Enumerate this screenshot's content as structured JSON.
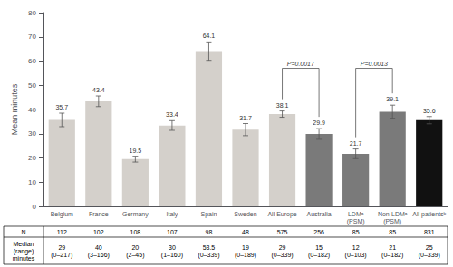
{
  "chart_data": {
    "type": "bar",
    "categories": [
      "Belgium",
      "France",
      "Germany",
      "Italy",
      "Spain",
      "Sweden",
      "All Europe",
      "Australia",
      "LDMᵃ\n(PSM)",
      "Non-LDMᵃ\n(PSM)",
      "All patientsᵇ"
    ],
    "values": [
      35.7,
      43.4,
      19.5,
      33.4,
      64.1,
      31.7,
      38.1,
      29.9,
      21.7,
      39.1,
      35.6
    ],
    "errors": [
      2.8,
      2.2,
      1.2,
      2.0,
      3.8,
      2.5,
      1.3,
      2.2,
      2.0,
      2.7,
      1.5
    ],
    "colors": [
      "#d4d0cb",
      "#d4d0cb",
      "#d4d0cb",
      "#d4d0cb",
      "#d4d0cb",
      "#d4d0cb",
      "#d4d0cb",
      "#7a7a7a",
      "#7a7a7a",
      "#7a7a7a",
      "#111111"
    ],
    "ylabel": "Mean minutes",
    "ylim": [
      0,
      80
    ],
    "yticks": [
      0,
      10,
      20,
      30,
      40,
      50,
      60,
      70,
      80
    ],
    "grid": false,
    "data_labels": true,
    "annotations": [
      {
        "text": "P=0.0017",
        "from": "All Europe",
        "to": "Australia",
        "y": 57
      },
      {
        "text": "P=0.0013",
        "from": "LDMᵃ\n(PSM)",
        "to": "Non-LDMᵃ\n(PSM)",
        "y": 57
      }
    ],
    "table": {
      "rows": [
        {
          "label": "N",
          "values": [
            "112",
            "102",
            "108",
            "107",
            "98",
            "48",
            "575",
            "256",
            "85",
            "85",
            "831"
          ]
        },
        {
          "label": "Median\n(range)\nminutes",
          "values": [
            "29\n(0–217)",
            "40\n(3–166)",
            "20\n(2–45)",
            "30\n(1–160)",
            "53.5\n(0–339)",
            "19\n(0–189)",
            "29\n(0–339)",
            "15\n(0–182)",
            "12\n(0–103)",
            "21\n(0–182)",
            "25\n(0–339)"
          ]
        }
      ]
    }
  }
}
